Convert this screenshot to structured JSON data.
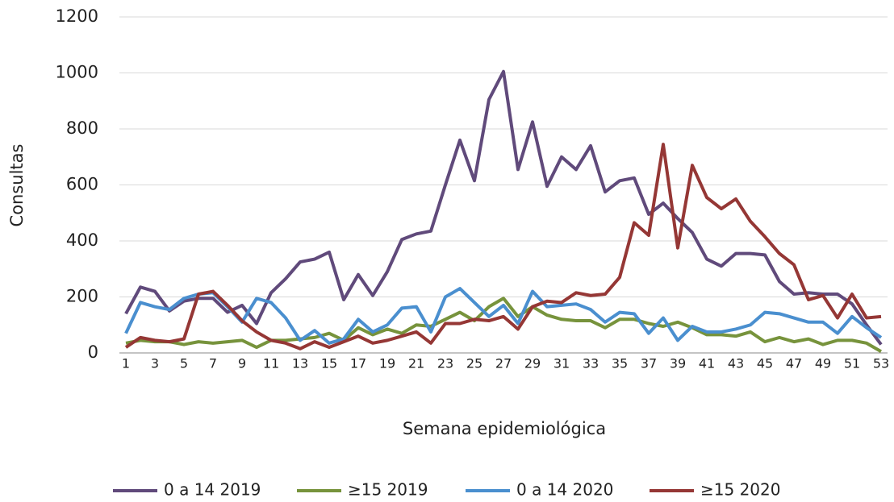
{
  "chart_data": {
    "type": "line",
    "x_label": "Semana epidemiológica",
    "y_label": "Consultas",
    "x": [
      1,
      2,
      3,
      4,
      5,
      6,
      7,
      8,
      9,
      10,
      11,
      12,
      13,
      14,
      15,
      16,
      17,
      18,
      19,
      20,
      21,
      22,
      23,
      24,
      25,
      26,
      27,
      28,
      29,
      30,
      31,
      32,
      33,
      34,
      35,
      36,
      37,
      38,
      39,
      40,
      41,
      42,
      43,
      44,
      45,
      46,
      47,
      48,
      49,
      50,
      51,
      52,
      53
    ],
    "xlim": [
      1,
      53
    ],
    "xticks": [
      1,
      3,
      5,
      7,
      9,
      11,
      13,
      15,
      17,
      19,
      21,
      23,
      25,
      27,
      29,
      31,
      33,
      35,
      37,
      39,
      41,
      43,
      45,
      47,
      49,
      51,
      53
    ],
    "ylim": [
      0,
      1200
    ],
    "yticks": [
      0,
      200,
      400,
      600,
      800,
      1000,
      1200
    ],
    "grid": true,
    "legend": "bottom",
    "series": [
      {
        "name": "0 a 14 2019",
        "color": "#604a7b",
        "values": [
          140,
          235,
          220,
          150,
          185,
          195,
          195,
          145,
          170,
          105,
          215,
          265,
          325,
          335,
          360,
          190,
          280,
          205,
          290,
          405,
          425,
          435,
          600,
          760,
          615,
          905,
          1005,
          655,
          825,
          595,
          700,
          655,
          740,
          575,
          615,
          625,
          495,
          535,
          480,
          430,
          335,
          310,
          355,
          355,
          350,
          255,
          210,
          215,
          210,
          210,
          175,
          100,
          30
        ]
      },
      {
        "name": "≥15 2019",
        "color": "#77933c",
        "values": [
          35,
          45,
          40,
          40,
          30,
          40,
          35,
          40,
          45,
          20,
          45,
          45,
          50,
          55,
          70,
          45,
          90,
          65,
          85,
          70,
          100,
          95,
          120,
          145,
          115,
          165,
          195,
          130,
          165,
          135,
          120,
          115,
          115,
          90,
          120,
          120,
          105,
          95,
          110,
          90,
          65,
          65,
          60,
          75,
          40,
          55,
          40,
          50,
          30,
          45,
          45,
          35,
          5
        ]
      },
      {
        "name": "0 a 14 2020",
        "color": "#4a8fcf",
        "values": [
          70,
          180,
          165,
          155,
          195,
          210,
          215,
          165,
          110,
          195,
          180,
          125,
          45,
          80,
          35,
          50,
          120,
          75,
          100,
          160,
          165,
          75,
          200,
          230,
          180,
          130,
          170,
          105,
          220,
          165,
          170,
          175,
          155,
          110,
          145,
          140,
          70,
          125,
          45,
          95,
          75,
          75,
          85,
          100,
          145,
          140,
          125,
          110,
          110,
          70,
          130,
          90,
          55
        ]
      },
      {
        "name": "≥15 2020",
        "color": "#953735",
        "values": [
          20,
          55,
          45,
          40,
          50,
          210,
          220,
          170,
          115,
          75,
          45,
          35,
          15,
          40,
          20,
          40,
          60,
          35,
          45,
          60,
          75,
          35,
          105,
          105,
          120,
          115,
          130,
          85,
          165,
          185,
          180,
          215,
          205,
          210,
          270,
          465,
          420,
          745,
          375,
          670,
          555,
          515,
          550,
          470,
          415,
          355,
          315,
          190,
          205,
          125,
          210,
          125,
          130
        ]
      }
    ]
  }
}
